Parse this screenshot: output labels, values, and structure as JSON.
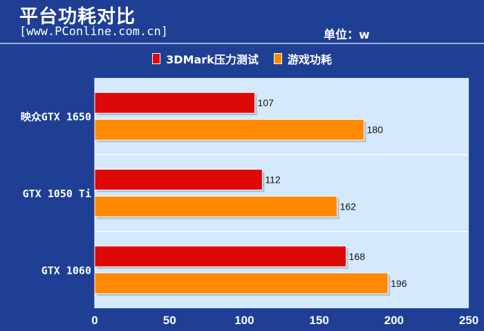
{
  "header": {
    "title": "平台功耗对比",
    "source": "[www.PConline.com.cn]",
    "unit": "单位：w"
  },
  "colors": {
    "background": "#1f3f95",
    "plot_bg": "#d4e9fb",
    "series_red": "#dd0808",
    "series_orange": "#ff8a00"
  },
  "chart_data": {
    "type": "bar",
    "orientation": "horizontal",
    "categories": [
      "映众GTX 1650",
      "GTX 1050 Ti",
      "GTX 1060"
    ],
    "series": [
      {
        "name": "3DMark压力测试",
        "values": [
          107,
          112,
          168
        ],
        "color": "#dd0808"
      },
      {
        "name": "游戏功耗",
        "values": [
          180,
          162,
          196
        ],
        "color": "#ff8a00"
      }
    ],
    "xlim": [
      0,
      250
    ],
    "xticks": [
      0,
      50,
      100,
      150,
      200,
      250
    ],
    "legend": "top",
    "grid": true
  }
}
